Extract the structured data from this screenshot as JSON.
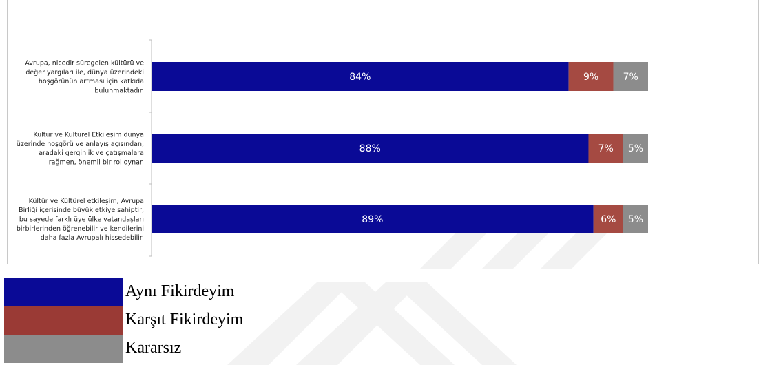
{
  "chart_data": {
    "type": "bar",
    "orientation": "horizontal",
    "stacked": true,
    "categories": [
      [
        "Avrupa, nicedir süregelen kültürü ve",
        "değer yargıları ile, dünya üzerindeki",
        "hoşgörünün artması için katkıda",
        "bulunmaktadır."
      ],
      [
        "Kültür ve Kültürel Etkileşim dünya",
        "üzerinde hoşgörü ve anlayış açısından,",
        "aradaki gerginlik ve çatışmalara",
        "rağmen, önemli bir rol oynar."
      ],
      [
        "Kültür ve Kültürel etkileşim, Avrupa",
        "Birliği içerisinde büyük etkiye sahiptir,",
        "bu sayede farklı üye ülke vatandaşları",
        "birbirlerinden öğrenebilir ve kendilerini",
        "daha fazla Avrupalı hissedebilir."
      ]
    ],
    "series": [
      {
        "name": "Aynı Fikirdeyim",
        "color": "#0a0a96",
        "values": [
          84,
          88,
          89
        ],
        "labels": [
          "84%",
          "88%",
          "89%"
        ]
      },
      {
        "name": "Karşıt Fikirdeyim",
        "color": "#a54a42",
        "values": [
          9,
          7,
          6
        ],
        "labels": [
          "9%",
          "7%",
          "6%"
        ]
      },
      {
        "name": "Kararsız",
        "color": "#8c8c8c",
        "values": [
          7,
          5,
          5
        ],
        "labels": [
          "7%",
          "5%",
          "5%"
        ]
      }
    ],
    "grid": false,
    "legend_position": "bottom-left"
  },
  "legend": {
    "items": [
      {
        "label": "Aynı Fikirdeyim",
        "color": "#0a0a96"
      },
      {
        "label": "Karşıt Fikirdeyim",
        "color": "#9a3a35"
      },
      {
        "label": "Kararsız",
        "color": "#8c8c8c"
      }
    ]
  }
}
